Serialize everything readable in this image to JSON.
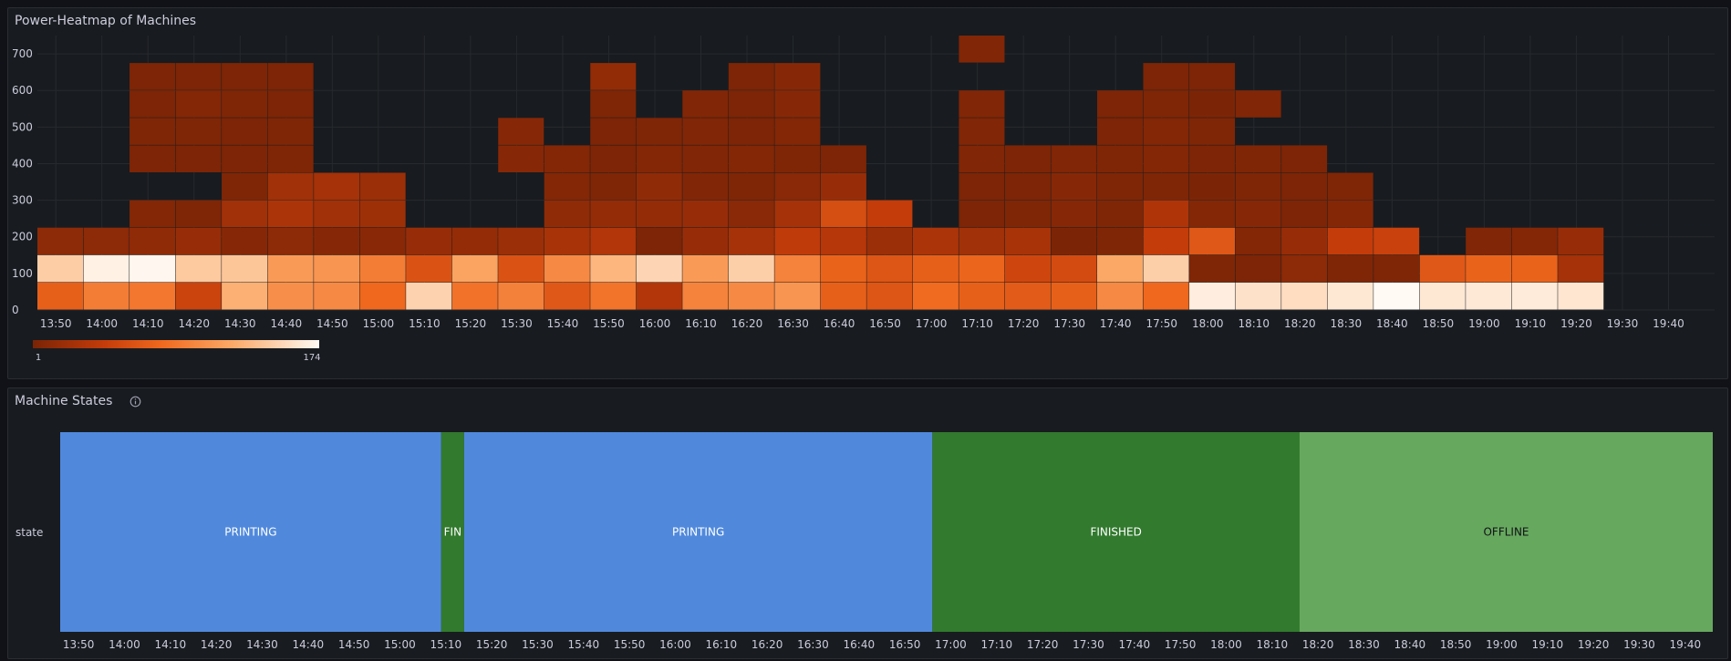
{
  "heatmap_panel": {
    "title": "Power-Heatmap of Machines",
    "legend_min": "1",
    "legend_max": "174"
  },
  "state_panel": {
    "title": "Machine States",
    "info_icon": "info-circle-icon",
    "row_label": "state"
  },
  "colors": {
    "background": "#111217",
    "panel": "#181b1f",
    "printing": "#5089dc",
    "finished": "#327a2e",
    "offline": "#67a85f"
  },
  "chart_data": [
    {
      "type": "heatmap",
      "title": "Power-Heatmap of Machines",
      "y_ticks": [
        "0",
        "100",
        "200",
        "300",
        "400",
        "500",
        "600",
        "700"
      ],
      "ylim": [
        0,
        750
      ],
      "x_ticks": [
        "13:50",
        "14:00",
        "14:10",
        "14:20",
        "14:30",
        "14:40",
        "14:50",
        "15:00",
        "15:10",
        "15:20",
        "15:30",
        "15:40",
        "15:50",
        "16:00",
        "16:10",
        "16:20",
        "16:30",
        "16:40",
        "16:50",
        "17:00",
        "17:10",
        "17:20",
        "17:30",
        "17:40",
        "17:50",
        "18:00",
        "18:10",
        "18:20",
        "18:30",
        "18:40",
        "18:50",
        "19:00",
        "19:10",
        "19:20",
        "19:30",
        "19:40"
      ],
      "bucket_edges": [
        0,
        75,
        150,
        225,
        300,
        375,
        450,
        525,
        600,
        675,
        750
      ],
      "color_scale": {
        "min": 1,
        "max": 174
      },
      "columns": [
        {
          "counts": [
            72,
            145,
            12
          ]
        },
        {
          "counts": [
            92,
            168,
            12
          ]
        },
        {
          "counts": [
            88,
            172,
            14,
            6,
            0,
            3,
            4,
            3,
            3
          ]
        },
        {
          "counts": [
            50,
            142,
            18,
            4,
            0,
            3,
            4,
            6,
            3
          ]
        },
        {
          "counts": [
            126,
            140,
            8,
            24,
            4,
            3,
            3,
            4,
            3
          ]
        },
        {
          "counts": [
            104,
            112,
            12,
            30,
            24,
            4,
            4,
            3,
            3
          ]
        },
        {
          "counts": [
            100,
            108,
            8,
            24,
            26
          ]
        },
        {
          "counts": [
            78,
            92,
            9,
            22,
            20
          ]
        },
        {
          "counts": [
            148,
            62,
            18
          ]
        },
        {
          "counts": [
            85,
            118,
            16
          ]
        },
        {
          "counts": [
            95,
            62,
            20,
            0,
            0,
            8,
            8
          ]
        },
        {
          "counts": [
            66,
            100,
            28,
            14,
            6,
            6
          ]
        },
        {
          "counts": [
            86,
            130,
            34,
            16,
            4,
            3,
            3,
            4,
            15
          ]
        },
        {
          "counts": [
            34,
            150,
            3,
            16,
            14,
            6,
            4
          ]
        },
        {
          "counts": [
            96,
            112,
            18,
            18,
            5,
            5,
            5,
            5
          ]
        },
        {
          "counts": [
            100,
            146,
            26,
            10,
            4,
            6,
            3,
            3,
            3
          ]
        },
        {
          "counts": [
            108,
            96,
            42,
            26,
            10,
            4,
            6,
            8,
            8
          ]
        },
        {
          "counts": [
            72,
            74,
            36,
            58,
            18,
            3
          ]
        },
        {
          "counts": [
            64,
            64,
            20,
            44
          ]
        },
        {
          "counts": [
            80,
            72,
            30
          ]
        },
        {
          "counts": [
            72,
            76,
            24,
            3,
            3,
            5,
            5,
            5,
            0,
            5
          ]
        },
        {
          "counts": [
            68,
            52,
            28,
            4,
            3,
            3
          ]
        },
        {
          "counts": [
            72,
            56,
            2,
            8,
            8,
            5
          ]
        },
        {
          "counts": [
            100,
            120,
            4,
            4,
            4,
            4,
            3,
            3
          ]
        },
        {
          "counts": [
            78,
            146,
            44,
            32,
            4,
            6,
            6,
            4,
            3
          ]
        },
        {
          "counts": [
            166,
            4,
            66,
            6,
            2,
            3,
            4,
            2,
            3
          ]
        },
        {
          "counts": [
            158,
            3,
            6,
            8,
            4,
            4,
            0,
            5
          ]
        },
        {
          "counts": [
            155,
            12,
            18,
            3,
            3,
            3
          ]
        },
        {
          "counts": [
            162,
            4,
            44,
            7,
            4
          ]
        },
        {
          "counts": [
            174,
            4,
            48
          ]
        },
        {
          "counts": [
            162,
            66
          ]
        },
        {
          "counts": [
            163,
            74,
            5
          ]
        },
        {
          "counts": [
            164,
            74,
            7
          ]
        },
        {
          "counts": [
            161,
            26,
            18
          ]
        }
      ]
    },
    {
      "type": "state-timeline",
      "title": "Machine States",
      "row": "state",
      "x_ticks": [
        "13:50",
        "14:00",
        "14:10",
        "14:20",
        "14:30",
        "14:40",
        "14:50",
        "15:00",
        "15:10",
        "15:20",
        "15:30",
        "15:40",
        "15:50",
        "16:00",
        "16:10",
        "16:20",
        "16:30",
        "16:40",
        "16:50",
        "17:00",
        "17:10",
        "17:20",
        "17:30",
        "17:40",
        "17:50",
        "18:00",
        "18:10",
        "18:20",
        "18:30",
        "18:40",
        "18:50",
        "19:00",
        "19:10",
        "19:20",
        "19:30",
        "19:40"
      ],
      "segments": [
        {
          "label": "PRINTING",
          "start": "13:46",
          "end": "15:09",
          "color": "#5089dc"
        },
        {
          "label": "FIN",
          "start": "15:09",
          "end": "15:14",
          "color": "#327a2e"
        },
        {
          "label": "PRINTING",
          "start": "15:14",
          "end": "16:56",
          "color": "#5089dc"
        },
        {
          "label": "FINISHED",
          "start": "16:56",
          "end": "18:16",
          "color": "#327a2e"
        },
        {
          "label": "OFFLINE",
          "start": "18:16",
          "end": "19:46",
          "color": "#67a85f"
        }
      ]
    }
  ]
}
